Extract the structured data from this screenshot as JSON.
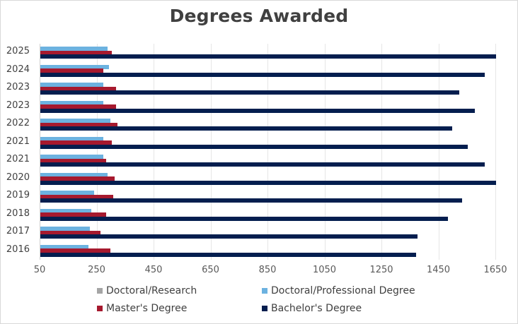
{
  "chart_data": {
    "type": "bar",
    "orientation": "horizontal",
    "title": "Degrees Awarded",
    "xlabel": "",
    "ylabel": "",
    "xlim": [
      50,
      1650
    ],
    "x_ticks": [
      "50",
      "250",
      "450",
      "650",
      "850",
      "1050",
      "1250",
      "1450",
      "1650"
    ],
    "grid": true,
    "legend_position": "bottom",
    "categories": [
      "2025",
      "2024",
      "2023",
      "2023",
      "2022",
      "2021",
      "2021",
      "2020",
      "2019",
      "2018",
      "2017",
      "2016"
    ],
    "series": [
      {
        "name": "Doctoral/Research",
        "color": "#a5a5a5",
        "values": [
          0,
          0,
          0,
          0,
          0,
          0,
          0,
          0,
          0,
          0,
          0,
          0
        ]
      },
      {
        "name": "Doctoral/Professional Degree",
        "color": "#6cb2e0",
        "values": [
          285,
          290,
          270,
          270,
          295,
          270,
          270,
          285,
          240,
          230,
          225,
          220
        ]
      },
      {
        "name": "Master's Degree",
        "color": "#a6192e",
        "values": [
          300,
          270,
          315,
          315,
          320,
          300,
          280,
          310,
          305,
          280,
          260,
          295
        ]
      },
      {
        "name": "Bachelor's Degree",
        "color": "#041e4f",
        "values": [
          1650,
          1610,
          1520,
          1575,
          1495,
          1550,
          1610,
          1650,
          1530,
          1480,
          1375,
          1370
        ]
      }
    ]
  },
  "legend": [
    {
      "label": "Doctoral/Research",
      "color": "#a5a5a5"
    },
    {
      "label": "Doctoral/Professional Degree",
      "color": "#6cb2e0"
    },
    {
      "label": "Master's Degree",
      "color": "#a6192e"
    },
    {
      "label": "Bachelor's Degree",
      "color": "#041e4f"
    }
  ]
}
